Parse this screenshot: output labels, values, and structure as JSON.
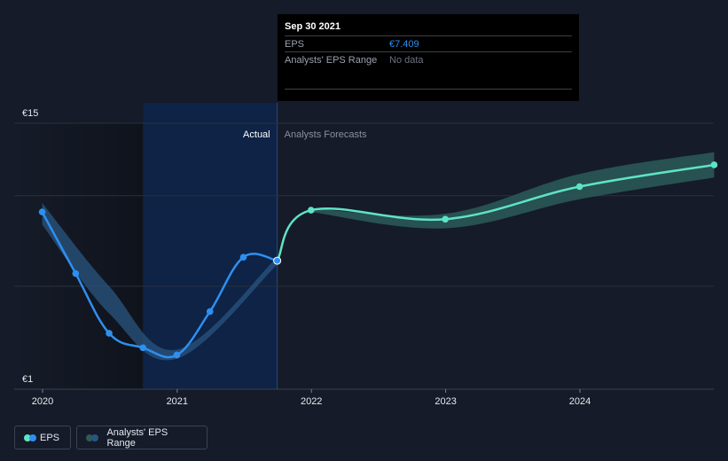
{
  "tooltip": {
    "date": "Sep 30 2021",
    "rows": [
      {
        "label": "EPS",
        "value": "€7.409"
      },
      {
        "label": "Analysts' EPS Range",
        "value": "No data"
      }
    ]
  },
  "legend": {
    "eps_label": "EPS",
    "range_label": "Analysts' EPS Range"
  },
  "colors": {
    "background": "#151b28",
    "eps_actual": "#2e8ff0",
    "eps_forecast": "#5ee3c5",
    "range_band_actual": "#2a5580",
    "range_band_forecast": "#2c5b58",
    "actual_highlight": "#0e2345"
  },
  "chart_data": {
    "type": "line",
    "x_axis": {
      "type": "date",
      "ticks": [
        "2020",
        "2021",
        "2022",
        "2023",
        "2024"
      ]
    },
    "y_axis": {
      "min": 1,
      "max": 15,
      "tick_labels": [
        "€15",
        "€1"
      ],
      "gridlines": [
        1,
        6,
        11,
        15
      ]
    },
    "region_labels": {
      "actual": "Actual",
      "forecast": "Analysts Forecasts"
    },
    "actual_end": "2021-09-30",
    "series": [
      {
        "name": "EPS",
        "segment": "actual",
        "points": [
          {
            "x": "2019-12-31",
            "y": 10.1
          },
          {
            "x": "2020-03-31",
            "y": 6.7
          },
          {
            "x": "2020-06-30",
            "y": 3.4
          },
          {
            "x": "2020-09-30",
            "y": 2.6
          },
          {
            "x": "2020-12-31",
            "y": 2.2
          },
          {
            "x": "2021-03-31",
            "y": 4.6
          },
          {
            "x": "2021-06-30",
            "y": 7.6
          },
          {
            "x": "2021-09-30",
            "y": 7.409
          }
        ]
      },
      {
        "name": "EPS",
        "segment": "forecast",
        "points": [
          {
            "x": "2021-09-30",
            "y": 7.409
          },
          {
            "x": "2021-12-31",
            "y": 10.2
          },
          {
            "x": "2022-12-31",
            "y": 9.7
          },
          {
            "x": "2023-12-31",
            "y": 11.5
          },
          {
            "x": "2024-12-31",
            "y": 12.7
          }
        ]
      },
      {
        "name": "Analysts' EPS Range",
        "segment": "actual",
        "upper": [
          {
            "x": "2019-12-31",
            "y": 10.6
          },
          {
            "x": "2020-06-30",
            "y": 6.0
          },
          {
            "x": "2020-12-31",
            "y": 2.5
          },
          {
            "x": "2021-09-30",
            "y": 7.6
          }
        ],
        "lower": [
          {
            "x": "2019-12-31",
            "y": 9.4
          },
          {
            "x": "2020-06-30",
            "y": 4.5
          },
          {
            "x": "2020-12-31",
            "y": 2.0
          },
          {
            "x": "2021-09-30",
            "y": 7.2
          }
        ]
      },
      {
        "name": "Analysts' EPS Range",
        "segment": "forecast",
        "upper": [
          {
            "x": "2021-12-31",
            "y": 10.3
          },
          {
            "x": "2022-12-31",
            "y": 10.0
          },
          {
            "x": "2023-12-31",
            "y": 12.2
          },
          {
            "x": "2024-12-31",
            "y": 13.4
          }
        ],
        "lower": [
          {
            "x": "2021-12-31",
            "y": 10.1
          },
          {
            "x": "2022-12-31",
            "y": 9.2
          },
          {
            "x": "2023-12-31",
            "y": 10.8
          },
          {
            "x": "2024-12-31",
            "y": 12.0
          }
        ]
      }
    ]
  }
}
